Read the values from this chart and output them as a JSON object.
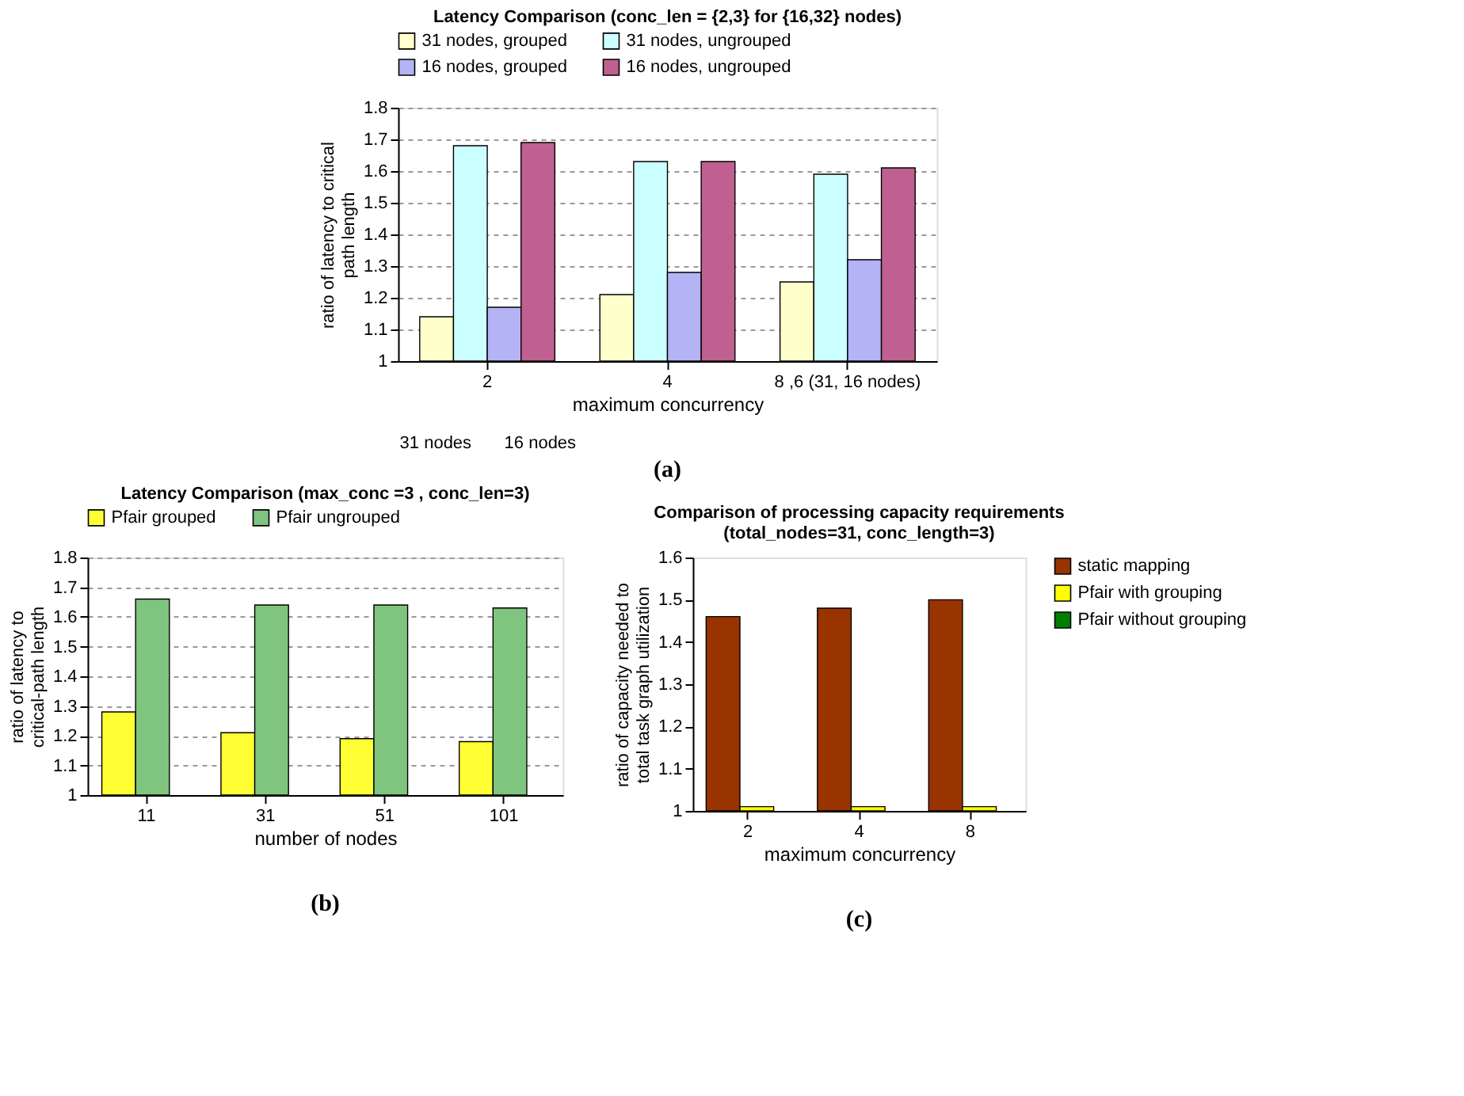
{
  "chart_data": [
    {
      "type": "bar",
      "title": "Latency Comparison (conc_len = {2,3} for {16,32} nodes)",
      "categories": [
        "2",
        "4",
        "8 ,6 (31, 16 nodes)"
      ],
      "xlabel": "maximum concurrency",
      "ylabel": "ratio of latency  to critical path length",
      "ylim": [
        1,
        1.8
      ],
      "yticks": [
        1,
        1.1,
        1.2,
        1.3,
        1.4,
        1.5,
        1.6,
        1.7,
        1.8
      ],
      "grid": "y",
      "legend": "top",
      "series": [
        {
          "name": "31 nodes, grouped",
          "color": "#ffffcc",
          "values": [
            1.14,
            1.21,
            1.25
          ]
        },
        {
          "name": "31 nodes, ungrouped",
          "color": "#ccffff",
          "values": [
            1.68,
            1.63,
            1.59
          ]
        },
        {
          "name": "16 nodes, grouped",
          "color": "#b3b3f5",
          "values": [
            1.17,
            1.28,
            1.32
          ]
        },
        {
          "name": "16 nodes, ungrouped",
          "color": "#c06090",
          "values": [
            1.69,
            1.63,
            1.61
          ]
        }
      ],
      "annotations": [
        "31 nodes",
        "16 nodes",
        "(a)"
      ]
    },
    {
      "type": "bar",
      "title": "Latency Comparison (max_conc =3 , conc_len=3)",
      "categories": [
        "11",
        "31",
        "51",
        "101"
      ],
      "xlabel": "number of nodes",
      "ylabel": "ratio of latency to critical-path length",
      "ylim": [
        1,
        1.8
      ],
      "yticks": [
        1,
        1.1,
        1.2,
        1.3,
        1.4,
        1.5,
        1.6,
        1.7,
        1.8
      ],
      "grid": "y",
      "legend": "top",
      "series": [
        {
          "name": "Pfair grouped",
          "color": "#ffff33",
          "values": [
            1.28,
            1.21,
            1.19,
            1.18
          ]
        },
        {
          "name": "Pfair ungrouped",
          "color": "#7fc47f",
          "values": [
            1.66,
            1.64,
            1.64,
            1.63
          ]
        }
      ],
      "annotations": [
        "(b)"
      ]
    },
    {
      "type": "bar",
      "title": "Comparison of processing capacity requirements\n(total_nodes=31, conc_length=3)",
      "categories": [
        "2",
        "4",
        "8"
      ],
      "xlabel": "maximum concurrency",
      "ylabel": "ratio of capacity needed to total task graph utilization",
      "ylim": [
        1,
        1.6
      ],
      "yticks": [
        1,
        1.1,
        1.2,
        1.3,
        1.4,
        1.5,
        1.6
      ],
      "grid": false,
      "legend": "right",
      "series": [
        {
          "name": "static mapping",
          "color": "#993300",
          "values": [
            1.46,
            1.48,
            1.5
          ]
        },
        {
          "name": "Pfair with grouping",
          "color": "#ffff00",
          "values": [
            1.01,
            1.01,
            1.01
          ]
        },
        {
          "name": "Pfair without grouping",
          "color": "#008000",
          "values": [
            null,
            null,
            null
          ]
        }
      ],
      "annotations": [
        "(c)"
      ]
    }
  ]
}
